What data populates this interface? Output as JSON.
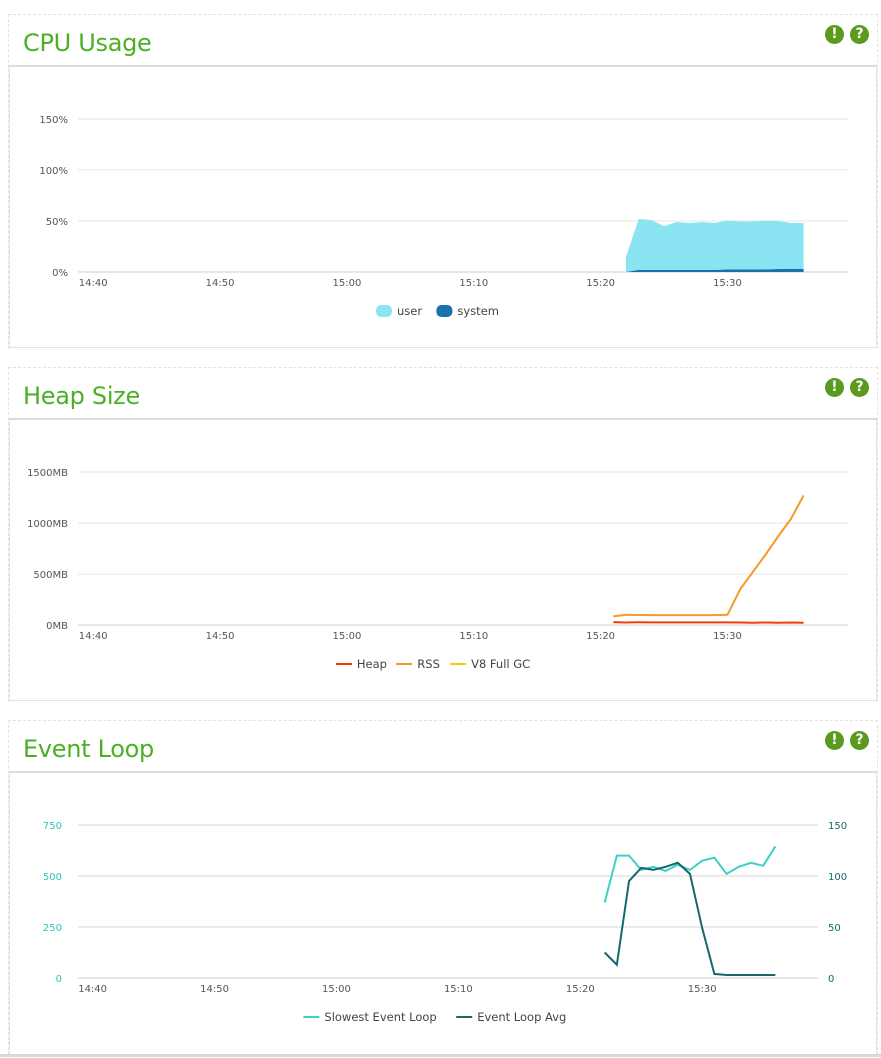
{
  "panels": {
    "cpu": {
      "title": "CPU Usage",
      "warn_icon": "!",
      "help_icon": "?"
    },
    "heap": {
      "title": "Heap Size",
      "warn_icon": "!",
      "help_icon": "?"
    },
    "loop": {
      "title": "Event Loop",
      "warn_icon": "!",
      "help_icon": "?"
    }
  },
  "chart_data": [
    {
      "type": "area",
      "title": "CPU Usage",
      "x_ticks": [
        "14:40",
        "14:50",
        "15:00",
        "15:10",
        "15:20",
        "15:30"
      ],
      "x_tick_minutes": [
        0,
        10,
        20,
        30,
        40,
        50
      ],
      "x_range_minutes": [
        -1.2,
        59.5
      ],
      "y_ticks": [
        "0%",
        "50%",
        "100%",
        "150%"
      ],
      "y_tick_values": [
        0,
        50,
        100,
        150
      ],
      "ylim": [
        0,
        150
      ],
      "x": [
        42,
        43,
        44,
        45,
        46,
        47,
        48,
        49,
        50,
        51,
        52,
        53,
        54,
        55,
        56
      ],
      "series": [
        {
          "name": "user",
          "color": "#8be4f2",
          "values": [
            15,
            50,
            49,
            43,
            47,
            46,
            47,
            46,
            48,
            47,
            47,
            48,
            47,
            45,
            45
          ]
        },
        {
          "name": "system",
          "color": "#1a72ad",
          "values": [
            0,
            2,
            2,
            2,
            2,
            2,
            2,
            2,
            2.5,
            2.5,
            2.5,
            2.5,
            3,
            3,
            3
          ]
        }
      ],
      "legend": "bottom-center",
      "grid": true
    },
    {
      "type": "line",
      "title": "Heap Size",
      "x_ticks": [
        "14:40",
        "14:50",
        "15:00",
        "15:10",
        "15:20",
        "15:30"
      ],
      "x_tick_minutes": [
        0,
        10,
        20,
        30,
        40,
        50
      ],
      "x_range_minutes": [
        -1.2,
        59.5
      ],
      "y_ticks": [
        "0MB",
        "500MB",
        "1000MB",
        "1500MB"
      ],
      "y_tick_values": [
        0,
        500,
        1000,
        1500
      ],
      "ylim": [
        0,
        1500
      ],
      "series": [
        {
          "name": "Heap",
          "color": "#f03c0e",
          "x": [
            41,
            42,
            43,
            44,
            45,
            46,
            47,
            48,
            49,
            50,
            51,
            52,
            53,
            54,
            55,
            56
          ],
          "values": [
            28,
            25,
            27,
            26,
            26,
            26,
            26,
            26,
            26,
            26,
            24,
            22,
            25,
            22,
            24,
            22
          ]
        },
        {
          "name": "RSS",
          "color": "#f59a2a",
          "x": [
            41,
            42,
            43,
            44,
            45,
            46,
            47,
            48,
            49,
            50,
            51,
            52,
            53,
            54,
            55,
            56
          ],
          "values": [
            85,
            100,
            98,
            97,
            97,
            97,
            97,
            97,
            97,
            100,
            350,
            520,
            690,
            870,
            1040,
            1270
          ]
        },
        {
          "name": "V8 Full GC",
          "color": "#ffc400",
          "x": [],
          "values": []
        }
      ],
      "legend": "bottom-center",
      "grid": true
    },
    {
      "type": "line",
      "title": "Event Loop",
      "x_ticks": [
        "14:40",
        "14:50",
        "15:00",
        "15:10",
        "15:20",
        "15:30"
      ],
      "x_tick_minutes": [
        0,
        10,
        20,
        30,
        40,
        50
      ],
      "x_range_minutes": [
        -1.2,
        59.5
      ],
      "y_ticks_left": [
        "0",
        "250",
        "500",
        "750"
      ],
      "y_tick_values_left": [
        0,
        250,
        500,
        750
      ],
      "ylim_left": [
        0,
        750
      ],
      "y_ticks_right": [
        "0",
        "50",
        "100",
        "150"
      ],
      "y_tick_values_right": [
        0,
        50,
        100,
        150
      ],
      "ylim_right": [
        0,
        150
      ],
      "series": [
        {
          "name": "Slowest Event Loop",
          "color": "#3ed0c6",
          "axis": "left",
          "x": [
            42,
            43,
            44,
            45,
            46,
            47,
            48,
            49,
            50,
            51,
            52,
            53,
            54,
            55,
            56
          ],
          "values": [
            370,
            600,
            600,
            530,
            545,
            525,
            555,
            530,
            575,
            590,
            510,
            545,
            565,
            550,
            645
          ]
        },
        {
          "name": "Event Loop Avg",
          "color": "#16686c",
          "axis": "right",
          "x": [
            42,
            43,
            44,
            45,
            46,
            47,
            48,
            49,
            50,
            51,
            52,
            53,
            54,
            55,
            56
          ],
          "values": [
            25,
            13,
            95,
            108,
            106,
            109,
            113,
            102,
            49,
            4,
            3,
            3,
            3,
            3,
            3
          ]
        }
      ],
      "legend": "bottom-center",
      "grid": true
    }
  ]
}
